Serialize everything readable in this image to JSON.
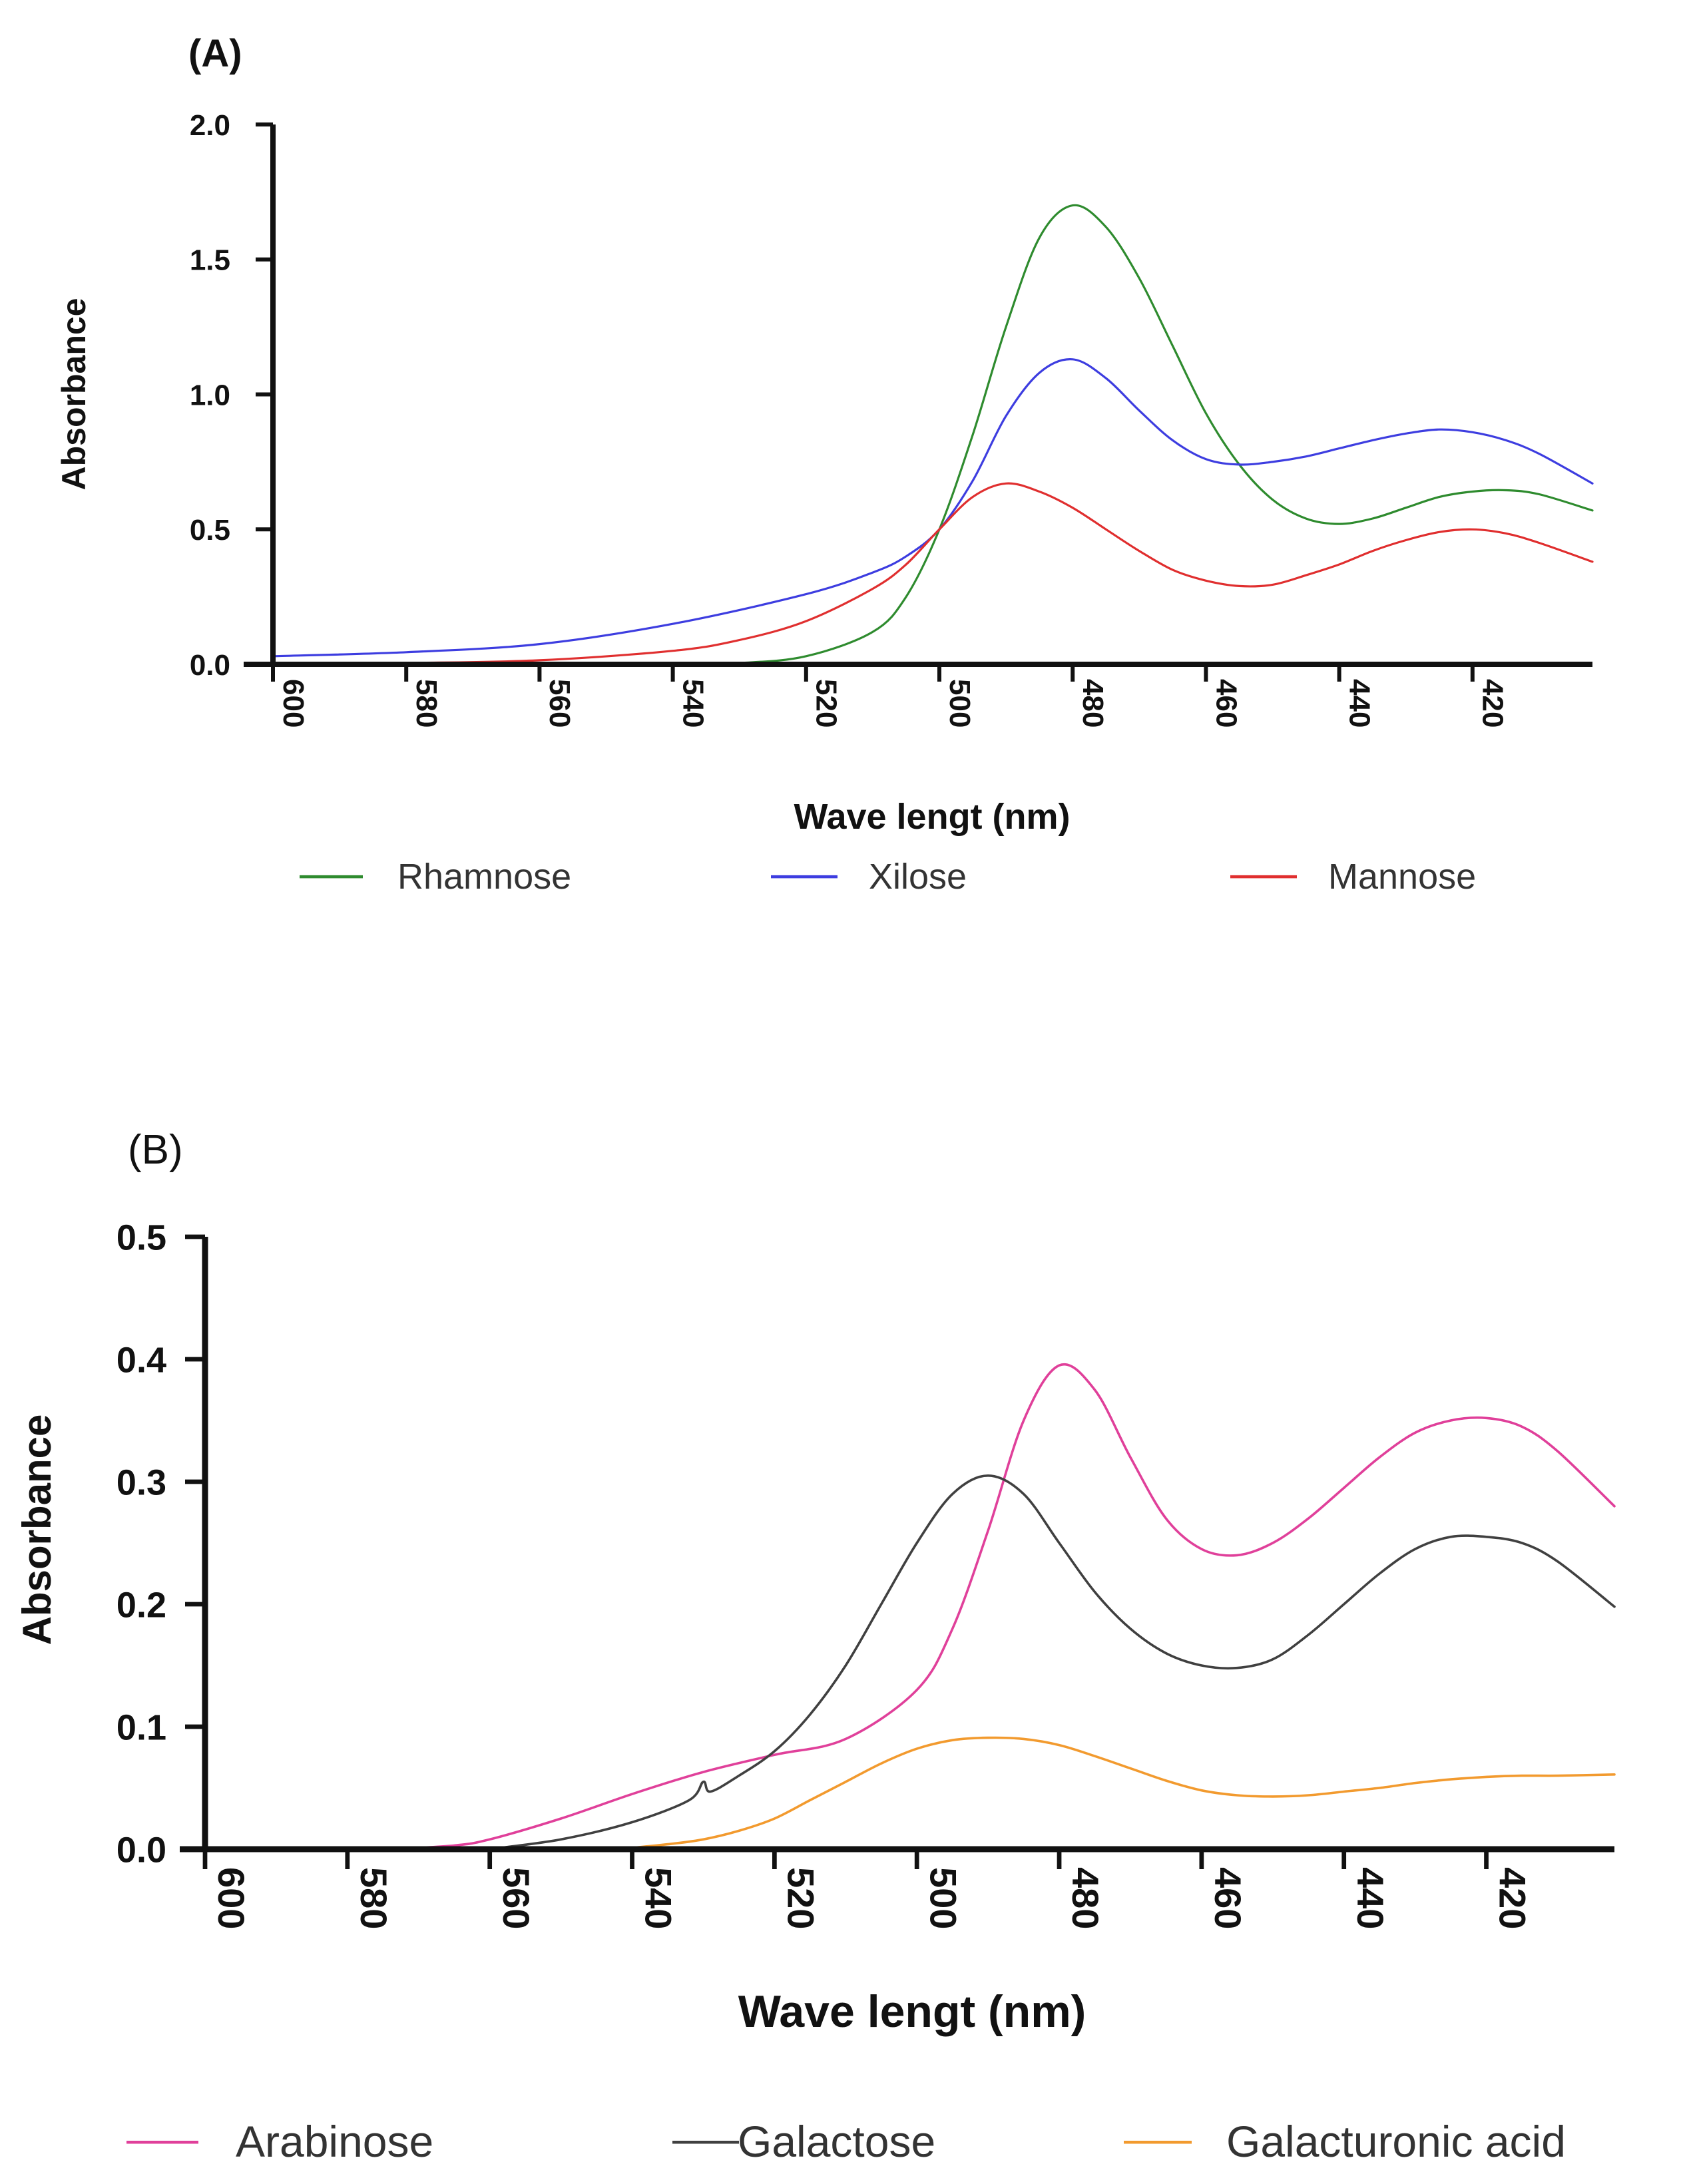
{
  "chart_data": [
    {
      "type": "line",
      "panel_label": "(A)",
      "xlabel": "Wave lengt (nm)",
      "ylabel": "Absorbance",
      "xlim": [
        600,
        402
      ],
      "ylim": [
        0,
        2.0
      ],
      "x_ticks": [
        600,
        580,
        560,
        540,
        520,
        500,
        480,
        460,
        440,
        420
      ],
      "y_ticks": [
        "0.0",
        "0.5",
        "1.0",
        "1.5",
        "2.0"
      ],
      "legend_position": "bottom",
      "series": [
        {
          "name": "Rhamnose",
          "color": "#2e8b2e",
          "x": [
            600,
            560,
            540,
            530,
            520,
            510,
            505,
            500,
            495,
            490,
            485,
            480,
            475,
            470,
            465,
            460,
            455,
            450,
            445,
            440,
            435,
            430,
            425,
            420,
            415,
            410,
            402
          ],
          "y": [
            0.0,
            0.0,
            0.0,
            0.005,
            0.03,
            0.12,
            0.25,
            0.5,
            0.85,
            1.25,
            1.58,
            1.7,
            1.62,
            1.43,
            1.18,
            0.93,
            0.74,
            0.61,
            0.54,
            0.52,
            0.54,
            0.58,
            0.62,
            0.64,
            0.645,
            0.63,
            0.57
          ]
        },
        {
          "name": "Xilose",
          "color": "#3d3de0",
          "x": [
            600,
            580,
            560,
            540,
            520,
            510,
            505,
            500,
            495,
            490,
            485,
            480,
            475,
            470,
            465,
            460,
            455,
            450,
            445,
            440,
            435,
            430,
            425,
            420,
            415,
            410,
            402
          ],
          "y": [
            0.03,
            0.045,
            0.075,
            0.15,
            0.26,
            0.34,
            0.4,
            0.5,
            0.68,
            0.92,
            1.08,
            1.13,
            1.06,
            0.94,
            0.83,
            0.76,
            0.74,
            0.75,
            0.77,
            0.8,
            0.83,
            0.855,
            0.87,
            0.86,
            0.83,
            0.78,
            0.67
          ]
        },
        {
          "name": "Mannose",
          "color": "#e02f2f",
          "x": [
            600,
            580,
            560,
            540,
            530,
            520,
            510,
            505,
            500,
            495,
            490,
            485,
            480,
            475,
            470,
            465,
            460,
            455,
            450,
            445,
            440,
            435,
            430,
            425,
            420,
            415,
            410,
            402
          ],
          "y": [
            0.0,
            0.005,
            0.015,
            0.05,
            0.09,
            0.16,
            0.28,
            0.37,
            0.5,
            0.62,
            0.67,
            0.64,
            0.58,
            0.5,
            0.42,
            0.35,
            0.31,
            0.29,
            0.295,
            0.33,
            0.37,
            0.42,
            0.46,
            0.49,
            0.5,
            0.485,
            0.45,
            0.38
          ]
        }
      ]
    },
    {
      "type": "line",
      "panel_label": "(B)",
      "xlabel": "Wave lengt (nm)",
      "ylabel": "Absorbance",
      "xlim": [
        600,
        402
      ],
      "ylim": [
        0,
        0.5
      ],
      "x_ticks": [
        600,
        580,
        560,
        540,
        520,
        500,
        480,
        460,
        440,
        420
      ],
      "y_ticks": [
        "0.0",
        "0.1",
        "0.2",
        "0.3",
        "0.4",
        "0.5"
      ],
      "legend_position": "bottom",
      "series": [
        {
          "name": "Arabinose",
          "color": "#e0409a",
          "x": [
            574,
            565,
            560,
            550,
            540,
            530,
            520,
            510,
            500,
            495,
            490,
            485,
            480,
            475,
            470,
            465,
            460,
            455,
            450,
            445,
            440,
            435,
            430,
            425,
            420,
            415,
            410,
            402
          ],
          "y": [
            0.0,
            0.003,
            0.008,
            0.025,
            0.045,
            0.063,
            0.077,
            0.09,
            0.13,
            0.18,
            0.26,
            0.35,
            0.395,
            0.375,
            0.32,
            0.27,
            0.245,
            0.24,
            0.25,
            0.27,
            0.295,
            0.32,
            0.34,
            0.35,
            0.352,
            0.345,
            0.325,
            0.28
          ]
        },
        {
          "name": "Galactose",
          "color": "#404040",
          "x": [
            560,
            550,
            540,
            532,
            530,
            529,
            525,
            520,
            515,
            510,
            505,
            500,
            495,
            490,
            485,
            480,
            475,
            470,
            465,
            460,
            455,
            450,
            445,
            440,
            435,
            430,
            425,
            420,
            415,
            410,
            402
          ],
          "y": [
            0.0,
            0.008,
            0.022,
            0.04,
            0.055,
            0.047,
            0.06,
            0.08,
            0.11,
            0.15,
            0.2,
            0.25,
            0.29,
            0.305,
            0.29,
            0.25,
            0.21,
            0.18,
            0.16,
            0.15,
            0.148,
            0.155,
            0.175,
            0.2,
            0.225,
            0.245,
            0.255,
            0.255,
            0.25,
            0.235,
            0.198
          ]
        },
        {
          "name": "Galacturonic acid",
          "color": "#f29a2e",
          "x": [
            542,
            535,
            530,
            525,
            520,
            515,
            510,
            505,
            500,
            495,
            490,
            485,
            480,
            475,
            470,
            465,
            460,
            455,
            450,
            445,
            440,
            435,
            430,
            425,
            420,
            415,
            410,
            402
          ],
          "y": [
            0.0,
            0.004,
            0.008,
            0.015,
            0.025,
            0.04,
            0.055,
            0.07,
            0.082,
            0.089,
            0.091,
            0.09,
            0.085,
            0.076,
            0.066,
            0.056,
            0.048,
            0.044,
            0.043,
            0.044,
            0.047,
            0.05,
            0.054,
            0.057,
            0.059,
            0.06,
            0.06,
            0.061
          ]
        }
      ]
    }
  ]
}
